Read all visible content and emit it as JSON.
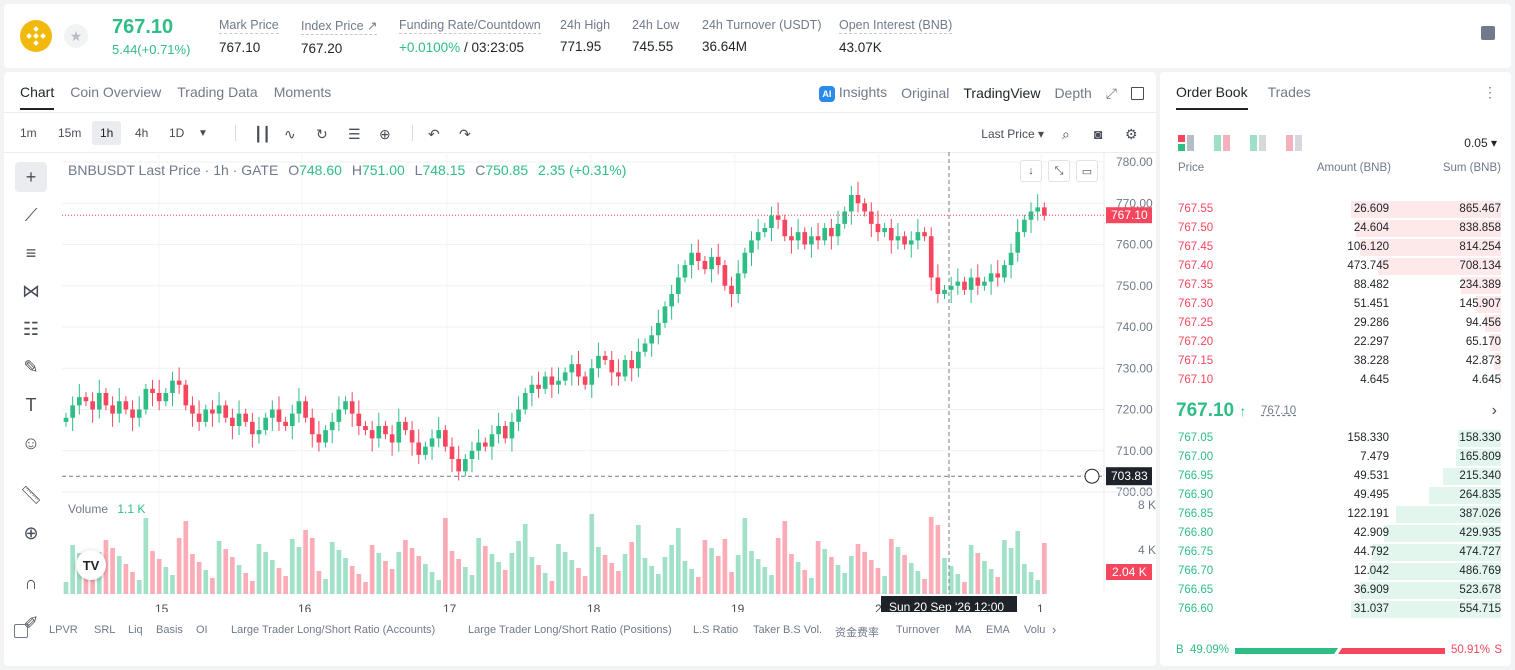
{
  "header": {
    "last_price": "767.10",
    "change": "5.44(+0.71%)",
    "stats": [
      {
        "label": "Mark Price",
        "value": "767.10"
      },
      {
        "label": "Index Price ↗",
        "value": "767.20"
      },
      {
        "label": "Funding Rate/Countdown",
        "value_green": "+0.0100%",
        "value": "/ 03:23:05"
      },
      {
        "label": "24h High",
        "value": "771.95"
      },
      {
        "label": "24h Low",
        "value": "745.55"
      },
      {
        "label": "24h Turnover (USDT)",
        "value": "36.64M"
      },
      {
        "label": "Open Interest (BNB)",
        "value": "43.07K"
      }
    ]
  },
  "chart_tabs": [
    "Chart",
    "Coin Overview",
    "Trading Data",
    "Moments"
  ],
  "chart_modes": {
    "insights": "Insights",
    "original": "Original",
    "tradingview": "TradingView",
    "depth": "Depth"
  },
  "timeframes": [
    "1m",
    "15m",
    "1h",
    "4h",
    "1D"
  ],
  "price_type": "Last Price",
  "legend": {
    "symbol": "BNBUSDT Last Price · 1h · GATE",
    "o": "748.60",
    "h": "751.00",
    "l": "748.15",
    "c": "750.85",
    "chg": "2.35 (+0.31%)"
  },
  "volume_legend": {
    "label": "Volume",
    "value": "1.1 K"
  },
  "crosshair": {
    "price": "703.83",
    "time": "Sun 20 Sep '26",
    "hour": "12:00"
  },
  "indicators": [
    "LPVR",
    "SRL",
    "Liq",
    "Basis",
    "OI",
    "Large Trader Long/Short Ratio (Accounts)",
    "Large Trader Long/Short Ratio (Positions)",
    "L.S Ratio",
    "Taker B.S Vol.",
    "资金费率",
    "Turnover",
    "MA",
    "EMA",
    "Volu"
  ],
  "chart_data": {
    "type": "candlestick",
    "symbol": "BNBUSDT",
    "interval": "1h",
    "ylim": [
      700,
      780
    ],
    "y_ticks": [
      "780.00",
      "770.00",
      "760.00",
      "750.00",
      "740.00",
      "730.00",
      "720.00",
      "710.00",
      "700.00"
    ],
    "x_ticks": [
      "15",
      "16",
      "17",
      "18",
      "19",
      "20",
      "1"
    ],
    "last_price_label": "767.10",
    "volume_ticks": [
      "8 K",
      "4 K"
    ],
    "volume_label": "2.04 K",
    "close_series": [
      718,
      721,
      723,
      722,
      720,
      724,
      721,
      719,
      722,
      720,
      718,
      720,
      725,
      724,
      722,
      724,
      727,
      726,
      721,
      719,
      717,
      720,
      719,
      721,
      718,
      716,
      719,
      717,
      714,
      715,
      718,
      720,
      717,
      716,
      719,
      722,
      718,
      714,
      712,
      715,
      717,
      720,
      722,
      719,
      716,
      715,
      713,
      716,
      714,
      712,
      717,
      715,
      712,
      709,
      711,
      713,
      715,
      711,
      708,
      705,
      708,
      710,
      712,
      711,
      714,
      716,
      713,
      717,
      720,
      724,
      726,
      725,
      728,
      726,
      727,
      729,
      731,
      728,
      726,
      730,
      733,
      732,
      729,
      728,
      732,
      730,
      734,
      736,
      738,
      741,
      745,
      748,
      752,
      755,
      758,
      756,
      754,
      757,
      755,
      750,
      748,
      753,
      758,
      761,
      763,
      764,
      767,
      766,
      762,
      761,
      763,
      760,
      762,
      761,
      764,
      762,
      765,
      768,
      772,
      770,
      768,
      765,
      763,
      764,
      761,
      762,
      760,
      761,
      763,
      762,
      752,
      748,
      749,
      750,
      751,
      749,
      752,
      750,
      751,
      753,
      752,
      755,
      758,
      763,
      766,
      768,
      769,
      767
    ]
  },
  "order_book": {
    "tabs": [
      "Order Book",
      "Trades"
    ],
    "tick": "0.05",
    "headers": [
      "Price",
      "Amount (BNB)",
      "Sum (BNB)"
    ],
    "asks": [
      {
        "p": "767.55",
        "a": "26.609",
        "s": "865.467",
        "d": 1.0
      },
      {
        "p": "767.50",
        "a": "24.604",
        "s": "838.858",
        "d": 0.97
      },
      {
        "p": "767.45",
        "a": "106.120",
        "s": "814.254",
        "d": 0.94
      },
      {
        "p": "767.40",
        "a": "473.745",
        "s": "708.134",
        "d": 0.82
      },
      {
        "p": "767.35",
        "a": "88.482",
        "s": "234.389",
        "d": 0.27
      },
      {
        "p": "767.30",
        "a": "51.451",
        "s": "145.907",
        "d": 0.17
      },
      {
        "p": "767.25",
        "a": "29.286",
        "s": "94.456",
        "d": 0.11
      },
      {
        "p": "767.20",
        "a": "22.297",
        "s": "65.170",
        "d": 0.075
      },
      {
        "p": "767.15",
        "a": "38.228",
        "s": "42.873",
        "d": 0.05
      },
      {
        "p": "767.10",
        "a": "4.645",
        "s": "4.645",
        "d": 0.01
      }
    ],
    "mid": "767.10",
    "mid_mark": "767.10",
    "bids": [
      {
        "p": "767.05",
        "a": "158.330",
        "s": "158.330",
        "d": 0.29
      },
      {
        "p": "767.00",
        "a": "7.479",
        "s": "165.809",
        "d": 0.3
      },
      {
        "p": "766.95",
        "a": "49.531",
        "s": "215.340",
        "d": 0.39
      },
      {
        "p": "766.90",
        "a": "49.495",
        "s": "264.835",
        "d": 0.48
      },
      {
        "p": "766.85",
        "a": "122.191",
        "s": "387.026",
        "d": 0.7
      },
      {
        "p": "766.80",
        "a": "42.909",
        "s": "429.935",
        "d": 0.78
      },
      {
        "p": "766.75",
        "a": "44.792",
        "s": "474.727",
        "d": 0.86
      },
      {
        "p": "766.70",
        "a": "12.042",
        "s": "486.769",
        "d": 0.88
      },
      {
        "p": "766.65",
        "a": "36.909",
        "s": "523.678",
        "d": 0.94
      },
      {
        "p": "766.60",
        "a": "31.037",
        "s": "554.715",
        "d": 1.0
      }
    ],
    "buy_pct": "49.09%",
    "sell_pct": "50.91%",
    "buy_ratio": 0.4909,
    "buy_label": "B",
    "sell_label": "S"
  },
  "colors": {
    "up": "#2ebd85",
    "down": "#f6465d"
  }
}
